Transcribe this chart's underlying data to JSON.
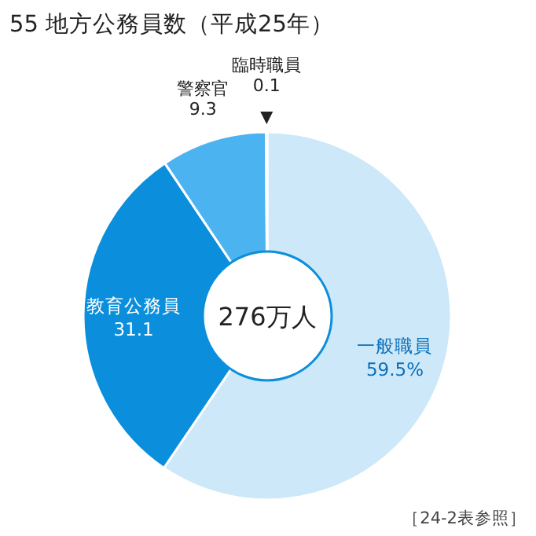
{
  "chart_data": {
    "type": "donut",
    "title": "55  地方公務員数（平成25年）",
    "categories": [
      "一般職員",
      "教育公務員",
      "警察官",
      "臨時職員"
    ],
    "values": [
      59.5,
      31.1,
      9.3,
      0.1
    ],
    "colors": [
      "#cde8f8",
      "#0b8fdc",
      "#4bb3ef",
      "#0b78c2"
    ],
    "value_labels": [
      "59.5%",
      "31.1",
      "9.3",
      "0.1"
    ],
    "annotations": [
      "276万人",
      "［24-2表参照］"
    ]
  }
}
